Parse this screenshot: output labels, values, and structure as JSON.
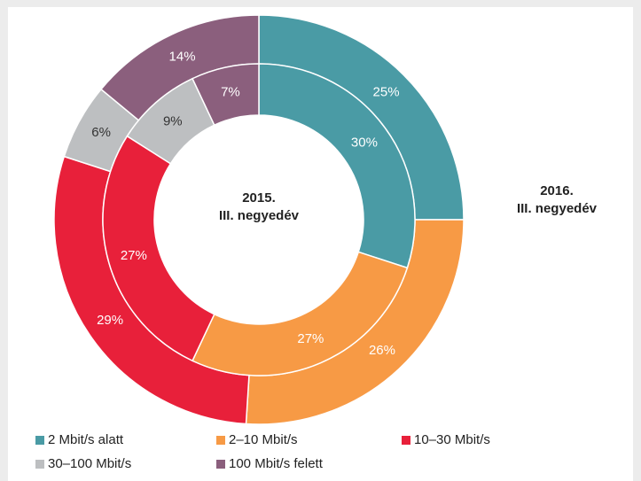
{
  "chart_data": {
    "type": "donut",
    "categories": [
      "2 Mbit/s alatt",
      "2–10 Mbit/s",
      "10–30 Mbit/s",
      "30–100 Mbit/s",
      "100 Mbit/s felett"
    ],
    "colors": [
      "#4a9ba5",
      "#f79a45",
      "#e8203a",
      "#bdbfc1",
      "#8b5f7d"
    ],
    "series": [
      {
        "name": [
          "2016.",
          "III. negyedév"
        ],
        "ring": "outer",
        "values": [
          25,
          26,
          29,
          6,
          14
        ],
        "value_labels": [
          "25%",
          "26%",
          "29%",
          "6%",
          "14%"
        ]
      },
      {
        "name": [
          "2015.",
          "III. negyedév"
        ],
        "ring": "inner",
        "values": [
          30,
          27,
          27,
          9,
          7
        ],
        "value_labels": [
          "30%",
          "27%",
          "27%",
          "9%",
          "7%"
        ]
      }
    ]
  }
}
